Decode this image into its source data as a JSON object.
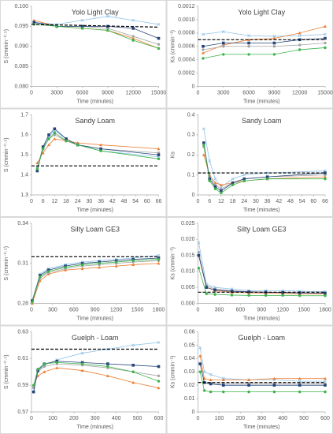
{
  "chart_data": [
    {
      "type": "line",
      "title": "Yolo Light Clay",
      "x_label": "Time (minutes)",
      "y_label": "S (cmmin⁻⁰·⁵)",
      "x": [
        300,
        3000,
        6000,
        9000,
        12000,
        15000
      ],
      "xlim": [
        0,
        15000
      ],
      "xticks": [
        0,
        3000,
        6000,
        9000,
        12000,
        15000
      ],
      "ylim": [
        0.08,
        0.1
      ],
      "yticks": [
        {
          "value": 0.08,
          "label": "0.080"
        },
        0.085,
        {
          "value": 0.09,
          "label": "0.090"
        },
        0.095,
        {
          "value": 0.1,
          "label": "0.100"
        }
      ],
      "series": [
        {
          "color": "#8fc3ea",
          "marker": "cross",
          "values": [
            0.096,
            0.0955,
            0.0965,
            0.0975,
            0.0965,
            0.0955
          ]
        },
        {
          "color": "#ed7d31",
          "marker": "triangle",
          "values": [
            0.0965,
            0.095,
            0.0945,
            0.094,
            0.092,
            0.0895
          ]
        },
        {
          "color": "#a5a5a5",
          "marker": "circle",
          "values": [
            0.096,
            0.095,
            0.095,
            0.0945,
            0.0925,
            0.0905
          ]
        },
        {
          "color": "#264478",
          "marker": "square",
          "values": [
            0.096,
            0.095,
            0.095,
            0.095,
            0.0945,
            0.092
          ]
        },
        {
          "color": "#3cb44b",
          "marker": "circle",
          "values": [
            0.0955,
            0.095,
            0.0945,
            0.094,
            0.0915,
            0.0895
          ]
        },
        {
          "color": "#000000",
          "dash": true,
          "x": [
            0,
            15000
          ],
          "values": [
            0.0955,
            0.0948
          ]
        }
      ]
    },
    {
      "type": "line",
      "title": "Yolo Light Clay",
      "x_label": "Time (minutes)",
      "y_label": "Ks (cmmin⁻¹)",
      "x": [
        600,
        3000,
        6000,
        9000,
        12000,
        15000
      ],
      "xlim": [
        0,
        15000
      ],
      "xticks": [
        0,
        3000,
        6000,
        9000,
        12000,
        15000
      ],
      "ylim": [
        0,
        0.0012
      ],
      "yticks": [
        0,
        0.0002,
        0.0004,
        0.0006,
        0.0008,
        {
          "value": 0.001,
          "label": "0.0010"
        },
        0.0012
      ],
      "series": [
        {
          "color": "#8fc3ea",
          "marker": "cross",
          "values": [
            0.00078,
            0.00082,
            0.00076,
            0.00075,
            0.00076,
            0.00078
          ]
        },
        {
          "color": "#ed7d31",
          "marker": "triangle",
          "values": [
            0.0005,
            0.00062,
            0.0007,
            0.00072,
            0.0008,
            0.0009
          ]
        },
        {
          "color": "#a5a5a5",
          "marker": "circle",
          "values": [
            0.00055,
            0.0006,
            0.0006,
            0.0006,
            0.00062,
            0.00065
          ]
        },
        {
          "color": "#264478",
          "marker": "square",
          "values": [
            0.0006,
            0.00065,
            0.00065,
            0.00065,
            0.0007,
            0.00072
          ]
        },
        {
          "color": "#3cb44b",
          "marker": "circle",
          "values": [
            0.00042,
            0.00048,
            0.00048,
            0.00048,
            0.00055,
            0.00058
          ]
        },
        {
          "color": "#000000",
          "dash": true,
          "x": [
            0,
            15000
          ],
          "values": [
            0.0007,
            0.0007
          ]
        }
      ]
    },
    {
      "type": "line",
      "title": "Sandy Loam",
      "x_label": "Time (minutes)",
      "y_label": "S (cmmin⁻⁰·⁵)",
      "x": [
        3,
        6,
        9,
        12,
        18,
        24,
        36,
        66
      ],
      "xlim": [
        0,
        66
      ],
      "xticks": [
        0,
        6,
        12,
        18,
        24,
        30,
        36,
        42,
        48,
        54,
        60,
        66
      ],
      "ylim": [
        1.3,
        1.7
      ],
      "yticks": [
        1.3,
        1.4,
        1.5,
        1.6,
        1.7
      ],
      "series": [
        {
          "color": "#8fc3ea",
          "marker": "cross",
          "values": [
            1.43,
            1.53,
            1.59,
            1.62,
            1.58,
            1.55,
            1.52,
            1.49
          ]
        },
        {
          "color": "#ed7d31",
          "marker": "triangle",
          "values": [
            1.46,
            1.51,
            1.55,
            1.58,
            1.57,
            1.56,
            1.55,
            1.53
          ]
        },
        {
          "color": "#a5a5a5",
          "marker": "circle",
          "values": [
            1.44,
            1.54,
            1.58,
            1.6,
            1.57,
            1.55,
            1.53,
            1.51
          ]
        },
        {
          "color": "#264478",
          "marker": "square",
          "values": [
            1.42,
            1.54,
            1.6,
            1.63,
            1.58,
            1.55,
            1.53,
            1.5
          ]
        },
        {
          "color": "#3cb44b",
          "marker": "circle",
          "values": [
            1.43,
            1.53,
            1.58,
            1.61,
            1.57,
            1.55,
            1.52,
            1.48
          ]
        },
        {
          "color": "#000000",
          "dash": true,
          "x": [
            0,
            66
          ],
          "values": [
            1.445,
            1.445
          ]
        }
      ]
    },
    {
      "type": "line",
      "title": "Sandy Loam",
      "x_label": "Time (minutes)",
      "y_label": "Ks",
      "x": [
        3,
        6,
        9,
        12,
        18,
        24,
        36,
        66
      ],
      "xlim": [
        0,
        66
      ],
      "xticks": [
        0,
        6,
        12,
        18,
        24,
        30,
        36,
        42,
        48,
        54,
        60,
        66
      ],
      "ylim": [
        0,
        0.4
      ],
      "yticks": [
        0,
        0.1,
        0.2,
        0.3,
        0.4
      ],
      "series": [
        {
          "color": "#8fc3ea",
          "marker": "cross",
          "values": [
            0.33,
            0.17,
            0.08,
            0.04,
            0.08,
            0.1,
            0.11,
            0.12
          ]
        },
        {
          "color": "#ed7d31",
          "marker": "triangle",
          "values": [
            0.2,
            0.1,
            0.06,
            0.05,
            0.06,
            0.07,
            0.08,
            0.09
          ]
        },
        {
          "color": "#a5a5a5",
          "marker": "circle",
          "values": [
            0.24,
            0.09,
            0.05,
            0.03,
            0.06,
            0.08,
            0.09,
            0.1
          ]
        },
        {
          "color": "#264478",
          "marker": "square",
          "values": [
            0.26,
            0.08,
            0.04,
            0.02,
            0.06,
            0.08,
            0.09,
            0.11
          ]
        },
        {
          "color": "#3cb44b",
          "marker": "circle",
          "values": [
            0.25,
            0.07,
            0.03,
            0.01,
            0.05,
            0.07,
            0.08,
            0.08
          ]
        },
        {
          "color": "#000000",
          "dash": true,
          "x": [
            0,
            66
          ],
          "values": [
            0.11,
            0.11
          ]
        }
      ]
    },
    {
      "type": "line",
      "title": "Silty Loam GE3",
      "x_label": "Time (minutes)",
      "y_label": "S (cmmin⁻⁰·⁵)",
      "x": [
        10,
        120,
        240,
        480,
        720,
        960,
        1200,
        1440,
        1800
      ],
      "xlim": [
        0,
        1800
      ],
      "xticks": [
        0,
        300,
        600,
        900,
        1200,
        1500,
        1800
      ],
      "ylim": [
        0.28,
        0.34
      ],
      "yticks": [
        0.28,
        0.31,
        0.34
      ],
      "series": [
        {
          "color": "#8fc3ea",
          "marker": "cross",
          "values": [
            0.281,
            0.302,
            0.306,
            0.309,
            0.311,
            0.312,
            0.313,
            0.314,
            0.316
          ]
        },
        {
          "color": "#ed7d31",
          "marker": "triangle",
          "values": [
            0.28,
            0.297,
            0.302,
            0.305,
            0.306,
            0.307,
            0.308,
            0.309,
            0.31
          ]
        },
        {
          "color": "#a5a5a5",
          "marker": "circle",
          "values": [
            0.281,
            0.299,
            0.303,
            0.306,
            0.308,
            0.309,
            0.31,
            0.311,
            0.312
          ]
        },
        {
          "color": "#264478",
          "marker": "square",
          "values": [
            0.282,
            0.301,
            0.305,
            0.308,
            0.31,
            0.311,
            0.312,
            0.313,
            0.314
          ]
        },
        {
          "color": "#3cb44b",
          "marker": "circle",
          "values": [
            0.281,
            0.3,
            0.304,
            0.307,
            0.309,
            0.31,
            0.311,
            0.312,
            0.313
          ]
        },
        {
          "color": "#000000",
          "dash": true,
          "x": [
            0,
            1800
          ],
          "values": [
            0.315,
            0.315
          ]
        }
      ]
    },
    {
      "type": "line",
      "title": "Silty Loam GE3",
      "x_label": "Time (minutes)",
      "y_label": "Ks (cmmin⁻¹)",
      "x": [
        10,
        120,
        240,
        480,
        720,
        960,
        1200,
        1440,
        1800
      ],
      "xlim": [
        0,
        1800
      ],
      "xticks": [
        0,
        300,
        600,
        900,
        1200,
        1500,
        1800
      ],
      "ylim": [
        0,
        0.025
      ],
      "yticks": [
        {
          "value": 0,
          "label": "0.000"
        },
        0.005,
        {
          "value": 0.01,
          "label": "0.010"
        },
        0.015,
        {
          "value": 0.02,
          "label": "0.020"
        },
        0.025
      ],
      "series": [
        {
          "color": "#8fc3ea",
          "marker": "cross",
          "values": [
            0.019,
            0.006,
            0.005,
            0.0045,
            0.004,
            0.004,
            0.004,
            0.0038,
            0.0037
          ]
        },
        {
          "color": "#ed7d31",
          "marker": "triangle",
          "values": [
            0.015,
            0.005,
            0.004,
            0.0035,
            0.0033,
            0.0032,
            0.0031,
            0.003,
            0.003
          ]
        },
        {
          "color": "#a5a5a5",
          "marker": "circle",
          "values": [
            0.016,
            0.0055,
            0.0045,
            0.004,
            0.0037,
            0.0035,
            0.0034,
            0.0033,
            0.0032
          ]
        },
        {
          "color": "#264478",
          "marker": "square",
          "values": [
            0.015,
            0.005,
            0.0042,
            0.0038,
            0.0036,
            0.0035,
            0.0034,
            0.0033,
            0.0032
          ]
        },
        {
          "color": "#3cb44b",
          "marker": "circle",
          "values": [
            0.011,
            0.003,
            0.0028,
            0.0026,
            0.0025,
            0.0025,
            0.0025,
            0.0024,
            0.0024
          ]
        },
        {
          "color": "#000000",
          "dash": true,
          "x": [
            0,
            1800
          ],
          "values": [
            0.0035,
            0.0035
          ]
        }
      ]
    },
    {
      "type": "line",
      "title": "Guelph - Loam",
      "x_label": "Time (minutes)",
      "y_label": "S (cmmin⁻⁰·⁵)",
      "x": [
        10,
        30,
        60,
        120,
        240,
        360,
        480,
        600
      ],
      "xlim": [
        0,
        600
      ],
      "xticks": [
        0,
        100,
        200,
        300,
        400,
        500,
        600
      ],
      "ylim": [
        0.57,
        0.63
      ],
      "yticks": [
        0.57,
        0.59,
        0.61,
        0.63
      ],
      "series": [
        {
          "color": "#8fc3ea",
          "marker": "cross",
          "values": [
            0.588,
            0.6,
            0.605,
            0.609,
            0.614,
            0.617,
            0.62,
            0.622
          ]
        },
        {
          "color": "#ed7d31",
          "marker": "triangle",
          "values": [
            0.59,
            0.597,
            0.6,
            0.603,
            0.601,
            0.597,
            0.592,
            0.588
          ]
        },
        {
          "color": "#a5a5a5",
          "marker": "circle",
          "values": [
            0.588,
            0.6,
            0.604,
            0.606,
            0.605,
            0.603,
            0.6,
            0.597
          ]
        },
        {
          "color": "#264478",
          "marker": "square",
          "values": [
            0.585,
            0.601,
            0.606,
            0.608,
            0.607,
            0.606,
            0.605,
            0.604
          ]
        },
        {
          "color": "#3cb44b",
          "marker": "circle",
          "values": [
            0.59,
            0.602,
            0.606,
            0.607,
            0.606,
            0.604,
            0.6,
            0.593
          ]
        },
        {
          "color": "#000000",
          "dash": true,
          "x": [
            0,
            600
          ],
          "values": [
            0.617,
            0.617
          ]
        }
      ]
    },
    {
      "type": "line",
      "title": "Guelph - Loam",
      "x_label": "Time (minutes)",
      "y_label": "Ks (cmmin⁻¹)",
      "x": [
        10,
        30,
        60,
        120,
        240,
        360,
        480,
        600
      ],
      "xlim": [
        0,
        600
      ],
      "xticks": [
        0,
        100,
        200,
        300,
        400,
        500,
        600
      ],
      "ylim": [
        0,
        0.06
      ],
      "yticks": [
        0,
        0.01,
        0.02,
        0.03,
        0.04,
        0.05,
        0.06
      ],
      "series": [
        {
          "color": "#8fc3ea",
          "marker": "cross",
          "values": [
            0.048,
            0.03,
            0.028,
            0.025,
            0.024,
            0.024,
            0.023,
            0.023
          ]
        },
        {
          "color": "#ed7d31",
          "marker": "triangle",
          "values": [
            0.042,
            0.025,
            0.024,
            0.024,
            0.024,
            0.025,
            0.025,
            0.025
          ]
        },
        {
          "color": "#a5a5a5",
          "marker": "circle",
          "values": [
            0.036,
            0.022,
            0.021,
            0.021,
            0.021,
            0.021,
            0.021,
            0.021
          ]
        },
        {
          "color": "#264478",
          "marker": "square",
          "values": [
            0.036,
            0.022,
            0.021,
            0.02,
            0.02,
            0.02,
            0.02,
            0.02
          ]
        },
        {
          "color": "#3cb44b",
          "marker": "circle",
          "values": [
            0.03,
            0.016,
            0.015,
            0.015,
            0.015,
            0.015,
            0.015,
            0.015
          ]
        },
        {
          "color": "#000000",
          "dash": true,
          "x": [
            0,
            600
          ],
          "values": [
            0.022,
            0.022
          ]
        }
      ]
    }
  ]
}
